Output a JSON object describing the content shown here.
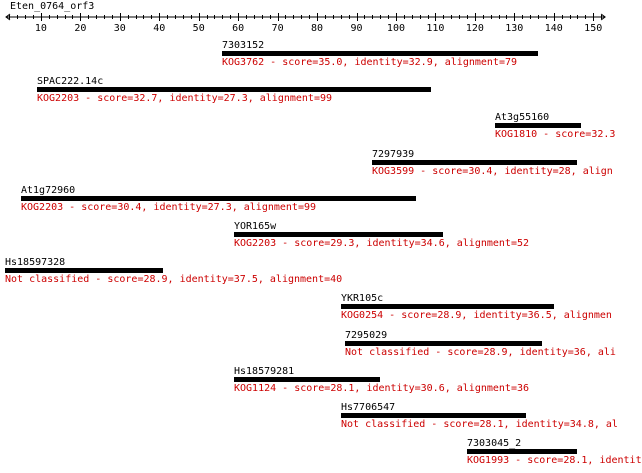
{
  "query": {
    "name": "Eten_0764_orf3",
    "length": 152,
    "scale_ticks": [
      "10",
      "20",
      "30",
      "40",
      "50",
      "60",
      "70",
      "80",
      "90",
      "100",
      "110",
      "120",
      "130",
      "140",
      "150"
    ]
  },
  "colors": {
    "bar": "#000000",
    "description": "#cc0000",
    "label": "#000000"
  },
  "hits": [
    {
      "name": "7303152",
      "start": 56,
      "end": 136,
      "description": "KOG3762 - score=35.0, identity=32.9, alignment=79"
    },
    {
      "name": "SPAC222.14c",
      "start": 9,
      "end": 109,
      "description": "KOG2203 - score=32.7, identity=27.3, alignment=99"
    },
    {
      "name": "At3g55160",
      "start": 125,
      "end": 147,
      "description": "KOG1810 - score=32.3"
    },
    {
      "name": "7297939",
      "start": 94,
      "end": 146,
      "description": "KOG3599 - score=30.4, identity=28, align"
    },
    {
      "name": "At1g72960",
      "start": 5,
      "end": 105,
      "description": "KOG2203 - score=30.4, identity=27.3, alignment=99"
    },
    {
      "name": "YOR165w",
      "start": 59,
      "end": 112,
      "description": "KOG2203 - score=29.3, identity=34.6, alignment=52"
    },
    {
      "name": "Hs18597328",
      "start": 1,
      "end": 41,
      "description": "Not classified - score=28.9, identity=37.5, alignment=40"
    },
    {
      "name": "YKR105c",
      "start": 86,
      "end": 140,
      "description": "KOG0254 - score=28.9, identity=36.5, alignmen"
    },
    {
      "name": "7295029",
      "start": 87,
      "end": 137,
      "description": "Not classified - score=28.9, identity=36, ali"
    },
    {
      "name": "Hs18579281",
      "start": 59,
      "end": 96,
      "description": "KOG1124 - score=28.1, identity=30.6, alignment=36"
    },
    {
      "name": "Hs7706547",
      "start": 86,
      "end": 133,
      "description": "Not classified - score=28.1, identity=34.8, al"
    },
    {
      "name": "7303045_2",
      "start": 118,
      "end": 146,
      "description": "KOG1993 - score=28.1, identit"
    }
  ]
}
